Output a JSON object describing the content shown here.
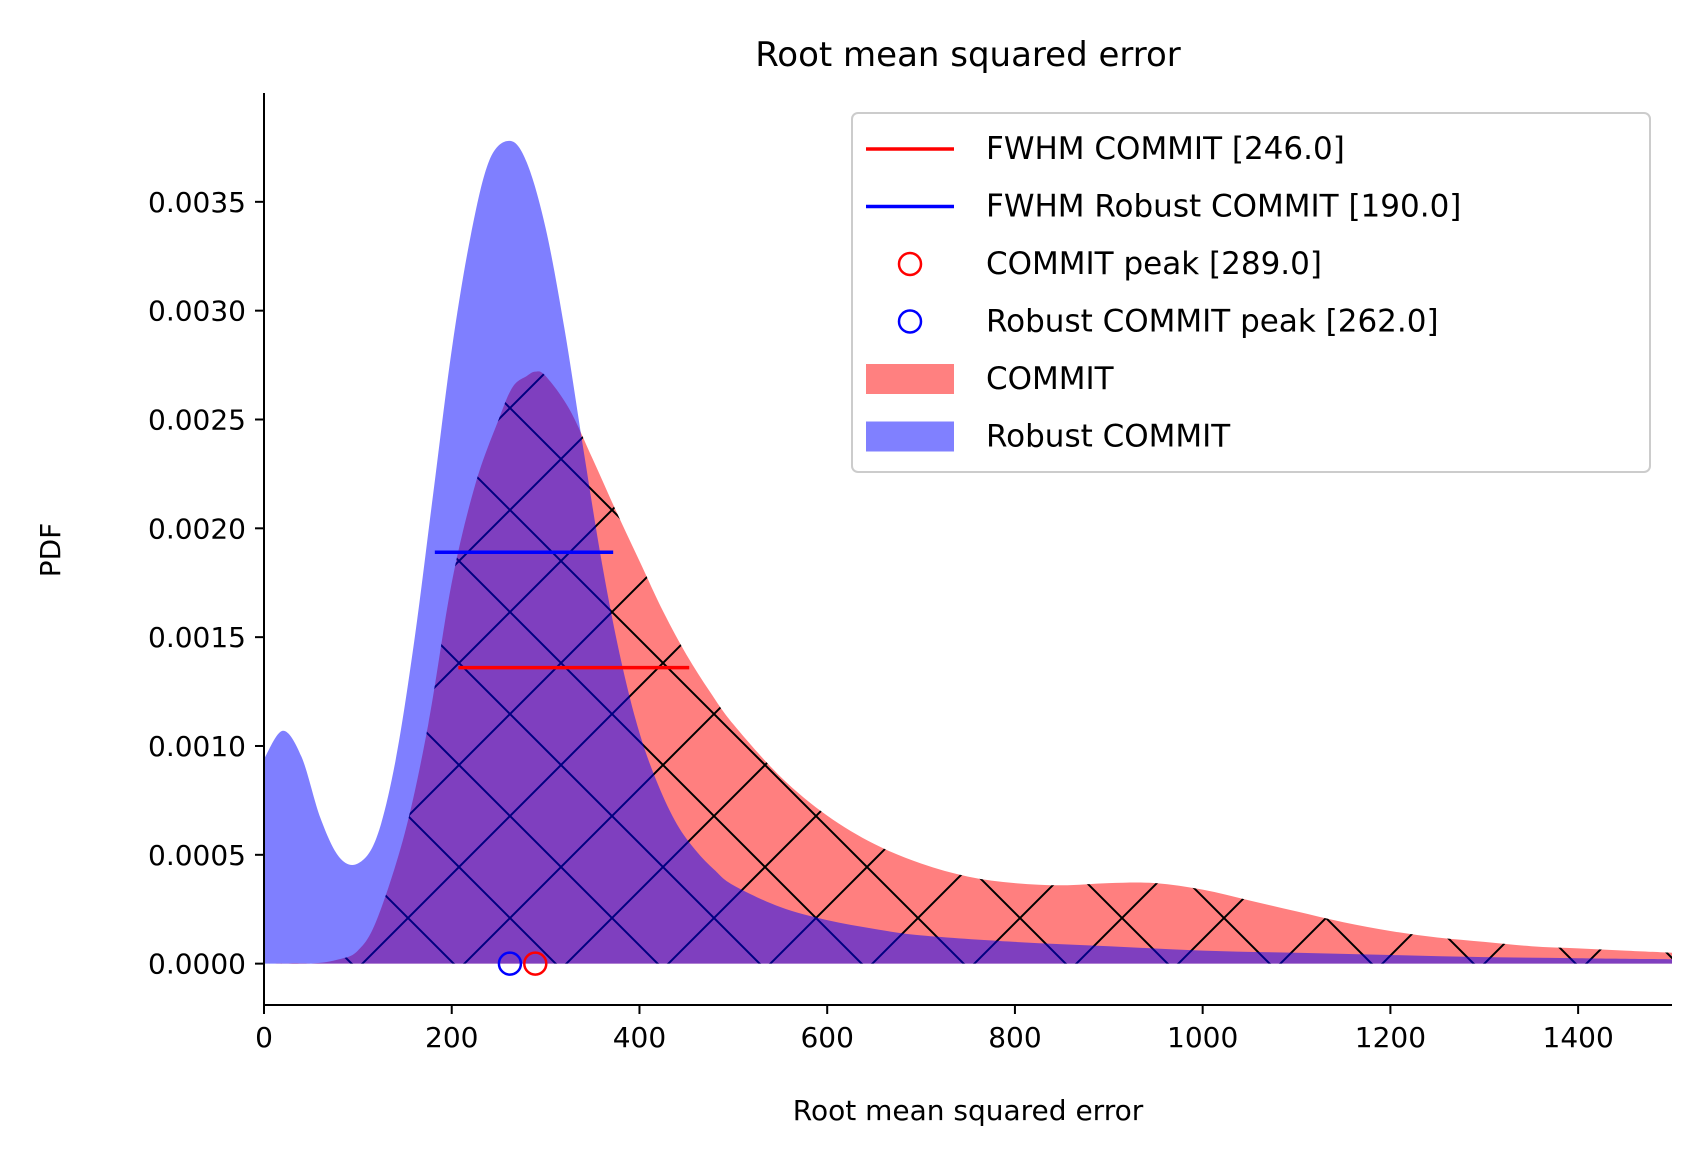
{
  "chart_data": {
    "type": "area",
    "title": "Root mean squared error",
    "xlabel": "Root mean squared error",
    "ylabel": "PDF",
    "xlim": [
      0,
      1500
    ],
    "ylim": [
      -0.00019,
      0.004
    ],
    "xticks": [
      0,
      200,
      400,
      600,
      800,
      1000,
      1200,
      1400
    ],
    "xtick_labels": [
      "0",
      "200",
      "400",
      "600",
      "800",
      "1000",
      "1200",
      "1400"
    ],
    "yticks": [
      0.0,
      0.0005,
      0.001,
      0.0015,
      0.002,
      0.0025,
      0.003,
      0.0035
    ],
    "ytick_labels": [
      "0.0000",
      "0.0005",
      "0.0010",
      "0.0015",
      "0.0020",
      "0.0025",
      "0.0030",
      "0.0035"
    ],
    "grid": false,
    "legend_position": "top-right",
    "legend": [
      {
        "label": "FWHM COMMIT [246.0]",
        "kind": "line",
        "color": "#ff0000"
      },
      {
        "label": "FWHM Robust COMMIT [190.0]",
        "kind": "line",
        "color": "#0000ff"
      },
      {
        "label": "COMMIT peak [289.0]",
        "kind": "marker",
        "color": "#ff0000"
      },
      {
        "label": "Robust COMMIT peak [262.0]",
        "kind": "marker",
        "color": "#0000ff"
      },
      {
        "label": "COMMIT",
        "kind": "patch",
        "color": "#ff8080"
      },
      {
        "label": "Robust COMMIT",
        "kind": "patch",
        "color": "#8080ff"
      }
    ],
    "series": [
      {
        "name": "COMMIT",
        "color": "#ff0000",
        "alpha": 0.5,
        "hatch": "x",
        "x": [
          0,
          50,
          80,
          100,
          120,
          150,
          175,
          200,
          225,
          250,
          265,
          280,
          289,
          300,
          325,
          350,
          375,
          400,
          425,
          450,
          475,
          500,
          550,
          600,
          650,
          700,
          750,
          800,
          850,
          900,
          950,
          1000,
          1050,
          1100,
          1150,
          1200,
          1250,
          1300,
          1350,
          1400,
          1450,
          1500
        ],
        "y": [
          0.0,
          0.0,
          2e-05,
          6e-05,
          0.0002,
          0.0006,
          0.0011,
          0.00175,
          0.0022,
          0.0025,
          0.00265,
          0.0027,
          0.00272,
          0.0027,
          0.00255,
          0.00232,
          0.00208,
          0.00185,
          0.00162,
          0.00142,
          0.00125,
          0.0011,
          0.00086,
          0.00068,
          0.00055,
          0.00046,
          0.0004,
          0.00037,
          0.00036,
          0.00037,
          0.00037,
          0.00034,
          0.00029,
          0.00024,
          0.00019,
          0.00015,
          0.00012,
          0.0001,
          8e-05,
          7e-05,
          6e-05,
          5e-05
        ]
      },
      {
        "name": "Robust COMMIT",
        "color": "#0000ff",
        "alpha": 0.5,
        "x": [
          0,
          20,
          40,
          60,
          80,
          100,
          120,
          140,
          160,
          180,
          200,
          220,
          240,
          262,
          280,
          300,
          320,
          340,
          360,
          380,
          400,
          420,
          440,
          460,
          480,
          500,
          550,
          600,
          650,
          700,
          800,
          900,
          1000,
          1100,
          1200,
          1300,
          1400,
          1500
        ],
        "y": [
          0.00094,
          0.00107,
          0.00095,
          0.00067,
          0.00049,
          0.00046,
          0.00058,
          0.00093,
          0.00148,
          0.00215,
          0.00282,
          0.00334,
          0.00369,
          0.00378,
          0.00368,
          0.00338,
          0.00292,
          0.00237,
          0.00184,
          0.0014,
          0.00106,
          0.00082,
          0.00064,
          0.00052,
          0.00043,
          0.00036,
          0.00026,
          0.0002,
          0.00016,
          0.00013,
          0.0001,
          8e-05,
          6e-05,
          5e-05,
          4e-05,
          3e-05,
          2.5e-05,
          2e-05
        ]
      }
    ],
    "fwhm_lines": [
      {
        "name": "FWHM COMMIT",
        "color": "#ff0000",
        "x_start": 207,
        "x_end": 453,
        "y": 0.00136
      },
      {
        "name": "FWHM Robust COMMIT",
        "color": "#0000ff",
        "x_start": 182,
        "x_end": 372,
        "y": 0.00189
      }
    ],
    "peaks": [
      {
        "name": "COMMIT peak",
        "color": "#ff0000",
        "x": 289,
        "y": 0.0
      },
      {
        "name": "Robust COMMIT peak",
        "color": "#0000ff",
        "x": 262,
        "y": 0.0
      }
    ]
  }
}
